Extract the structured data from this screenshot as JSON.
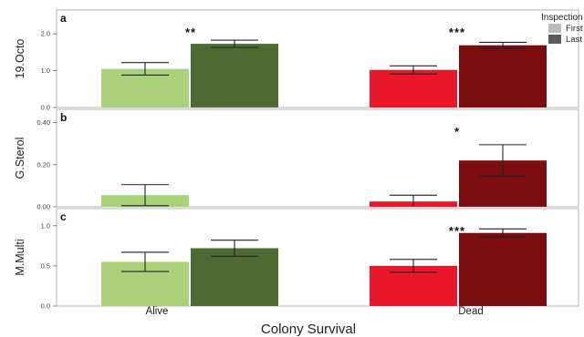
{
  "chart_data": {
    "type": "bar",
    "xlabel": "Colony Survival",
    "categories": [
      "Alive",
      "Dead"
    ],
    "legend": {
      "title": "Inspection",
      "entries": [
        "First",
        "Last"
      ],
      "placement": "top-right"
    },
    "colors": {
      "alive_first": "#a8d17a",
      "alive_last": "#4f6a33",
      "dead_first": "#e8172a",
      "dead_last": "#7c0e12",
      "legend_first": "#bdbdbd",
      "legend_last": "#595959"
    },
    "panels": [
      {
        "letter": "a",
        "ylabel": "19.Octo",
        "ylim": [
          0,
          2.4
        ],
        "yticks": [
          0.0,
          1.0,
          2.0
        ],
        "ytick_labels": [
          "0.0",
          "1.0",
          "2.0"
        ],
        "series": [
          {
            "name": "First",
            "values": [
              1.05,
              1.02
            ],
            "errors": [
              0.17,
              0.11
            ]
          },
          {
            "name": "Last",
            "values": [
              1.73,
              1.69
            ],
            "errors": [
              0.1,
              0.08
            ]
          }
        ],
        "significance": [
          "**",
          "***"
        ]
      },
      {
        "letter": "b",
        "ylabel": "G.Sterol",
        "ylim": [
          0,
          0.42
        ],
        "yticks": [
          0.0,
          0.2,
          0.4
        ],
        "ytick_labels": [
          "0.00",
          "0.20",
          "0.40"
        ],
        "series": [
          {
            "name": "First",
            "values": [
              0.055,
              0.025
            ],
            "errors": [
              0.05,
              0.03
            ]
          },
          {
            "name": "Last",
            "values": [
              null,
              0.22
            ],
            "errors": [
              null,
              0.075
            ]
          }
        ],
        "significance": [
          "",
          "*"
        ]
      },
      {
        "letter": "c",
        "ylabel": "M.Multi",
        "ylim": [
          0,
          1.1
        ],
        "yticks": [
          0.0,
          0.5,
          1.0
        ],
        "ytick_labels": [
          "0.0",
          "0.5",
          "1.0"
        ],
        "series": [
          {
            "name": "First",
            "values": [
              0.55,
              0.5
            ],
            "errors": [
              0.12,
              0.08
            ]
          },
          {
            "name": "Last",
            "values": [
              0.72,
              0.91
            ],
            "errors": [
              0.1,
              0.05
            ]
          }
        ],
        "significance": [
          "",
          "***"
        ]
      }
    ]
  }
}
